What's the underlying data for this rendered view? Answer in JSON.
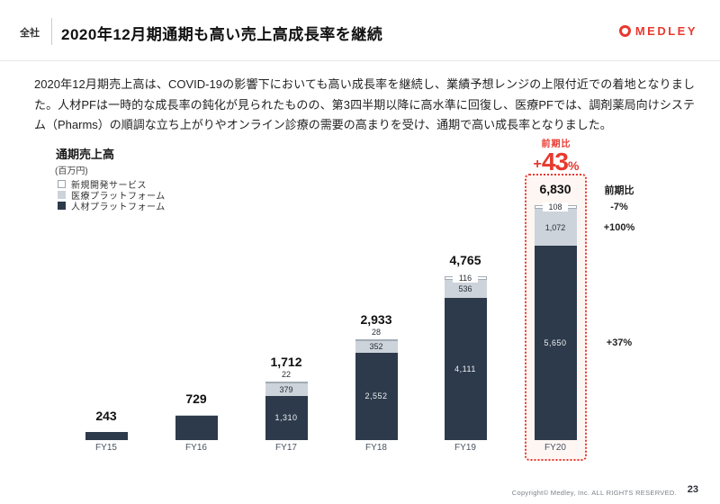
{
  "header": {
    "tag": "全社",
    "title": "2020年12月期通期も高い売上高成長率を継続",
    "logo_text": "MEDLEY"
  },
  "body_text": "2020年12月期売上高は、COVID-19の影響下においても高い成長率を継続し、業績予想レンジの上限付近での着地となりました。人材PFは一時的な成長率の鈍化が見られたものの、第3四半期以降に高水準に回復し、医療PFでは、調剤薬局向けシステム（Pharms）の順調な立ち上がりやオンライン診療の需要の高まりを受け、通期で高い成長率となりました。",
  "chart": {
    "title": "通期売上高",
    "unit": "(百万円)",
    "legend": [
      {
        "label": "新規開発サービス",
        "color": "#ffffff",
        "border": "#9aa4ae"
      },
      {
        "label": "医療プラットフォーム",
        "color": "#ccd3da"
      },
      {
        "label": "人材プラットフォーム",
        "color": "#2d3a4b"
      }
    ]
  },
  "chart_data": {
    "type": "bar",
    "stacked": true,
    "title": "通期売上高",
    "ylabel": "百万円",
    "categories": [
      "FY15",
      "FY16",
      "FY17",
      "FY18",
      "FY19",
      "FY20"
    ],
    "totals": [
      243,
      729,
      1712,
      2933,
      4765,
      6830
    ],
    "total_labels": [
      "243",
      "729",
      "1,712",
      "2,933",
      "4,765",
      "6,830"
    ],
    "series": [
      {
        "name": "人材プラットフォーム",
        "color": "#2d3a4b",
        "values": [
          243,
          700,
          1310,
          2552,
          4111,
          5650
        ],
        "labels": [
          "",
          "",
          "1,310",
          "2,552",
          "4,111",
          "5,650"
        ]
      },
      {
        "name": "医療プラットフォーム",
        "color": "#ccd3da",
        "values": [
          0,
          29,
          379,
          352,
          536,
          1072
        ],
        "labels": [
          "",
          "",
          "379",
          "352",
          "536",
          "1,072"
        ]
      },
      {
        "name": "新規開発サービス",
        "color": "#ffffff",
        "values": [
          0,
          0,
          22,
          28,
          116,
          108
        ],
        "labels": [
          "",
          "",
          "22",
          "28",
          "116",
          "108"
        ]
      }
    ],
    "highlight": {
      "category": "FY20",
      "callout_label": "前期比",
      "callout_plus": "+",
      "callout_num": "43",
      "callout_unit": "%"
    },
    "yoy": {
      "header": "前期比",
      "values": [
        "-7%",
        "+100%",
        "+37%"
      ]
    }
  },
  "footer": {
    "copyright": "Copyright© Medley, Inc. ALL RIGHTS RESERVED.",
    "page": "23"
  },
  "colors": {
    "accent_red": "#e8392f",
    "dark_navy": "#2d3a4b",
    "light_gray": "#ccd3da",
    "highlight_bg": "#fdf6f3"
  }
}
